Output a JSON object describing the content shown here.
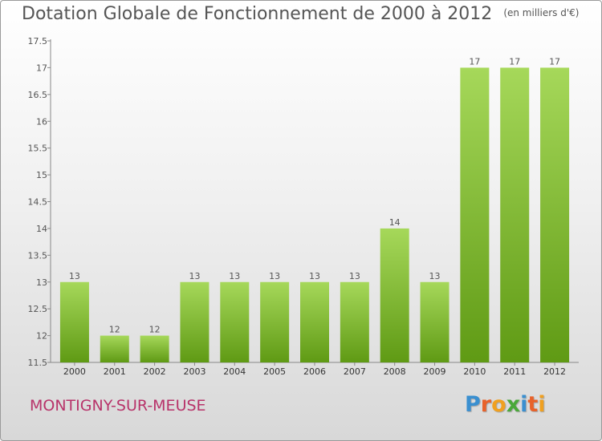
{
  "title": "Dotation Globale de Fonctionnement de 2000 à 2012",
  "unit_note": "(en milliers d'€)",
  "commune": "MONTIGNY-SUR-MEUSE",
  "logo": {
    "text": "Proxiti",
    "letter_colors": [
      "#3a8fd0",
      "#e8622a",
      "#f0a020",
      "#4aa83a",
      "#3a8fd0",
      "#e8622a",
      "#f0a020"
    ]
  },
  "colors": {
    "bar_light": "#a6d85a",
    "bar_dark": "#5f9a14",
    "axis": "#888888",
    "text": "#555555",
    "commune": "#b8336a"
  },
  "chart_data": {
    "type": "bar",
    "title": "Dotation Globale de Fonctionnement de 2000 à 2012",
    "categories": [
      "2000",
      "2001",
      "2002",
      "2003",
      "2004",
      "2005",
      "2006",
      "2007",
      "2008",
      "2009",
      "2010",
      "2011",
      "2012"
    ],
    "values": [
      13,
      12,
      12,
      13,
      13,
      13,
      13,
      13,
      14,
      13,
      17,
      17,
      17
    ],
    "data_labels": [
      "13",
      "12",
      "12",
      "13",
      "13",
      "13",
      "13",
      "13",
      "14",
      "13",
      "17",
      "17",
      "17"
    ],
    "ylim": [
      11.5,
      17.5
    ],
    "yticks": [
      "11.5",
      "12",
      "12.5",
      "13",
      "13.5",
      "14",
      "14.5",
      "15",
      "15.5",
      "16",
      "16.5",
      "17",
      "17.5"
    ],
    "xlabel": "",
    "ylabel": "",
    "grid": false,
    "legend": "none"
  }
}
